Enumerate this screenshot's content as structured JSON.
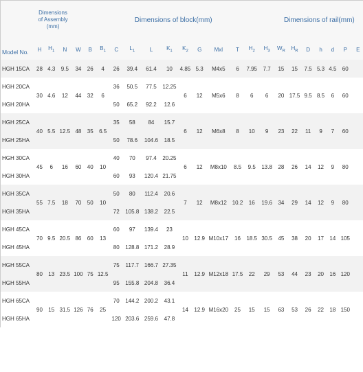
{
  "header": {
    "model_no": "Model No.",
    "group_assembly": "Dimensions of Assembly (mm)",
    "group_block": "Dimensions of block(mm)",
    "group_rail": "Dimensions of rail(mm)"
  },
  "columns": [
    "H",
    "H1",
    "N",
    "W",
    "B",
    "B1",
    "C",
    "L1",
    "L",
    "K1",
    "K2",
    "G",
    "Mxl",
    "T",
    "H2",
    "H3",
    "WR",
    "HR",
    "D",
    "h",
    "d",
    "P",
    "E"
  ],
  "column_html": [
    "H",
    "H<sub class='sub'>1</sub>",
    "N",
    "W",
    "B",
    "B<sub class='sub'>1</sub>",
    "C",
    "L<sub class='sub'>1</sub>",
    "L",
    "K<sub class='sub'>1</sub>",
    "K<sub class='sub'>2</sub>",
    "G",
    "Mxl",
    "T",
    "H<sub class='sub'>2</sub>",
    "H<sub class='sub'>3</sub>",
    "W<sub class='sub'>R</sub>",
    "H<sub class='sub'>R</sub>",
    "D",
    "h",
    "d",
    "P",
    "E"
  ],
  "pairs": [
    {
      "models": [
        "HGH 15CA"
      ],
      "shared": {
        "H": "28",
        "H1": "4.3",
        "N": "9.5",
        "W": "34",
        "B": "26",
        "B1": "4",
        "K2": "4.85",
        "G": "5.3",
        "Mxl": "M4x5",
        "T": "6",
        "H2": "7.95",
        "H3": "7.7",
        "WR": "15",
        "HR": "15",
        "D": "7.5",
        "h": "5.3",
        "d": "4.5",
        "P": "60",
        "E": ""
      },
      "rows": [
        {
          "C": "26",
          "L1": "39.4",
          "L": "61.4",
          "K1": "10"
        }
      ]
    },
    {
      "models": [
        "HGH 20CA",
        "HGH 20HA"
      ],
      "shared": {
        "H": "30",
        "H1": "4.6",
        "N": "12",
        "W": "44",
        "B": "32",
        "B1": "6",
        "K2": "6",
        "G": "12",
        "Mxl": "M5x6",
        "T": "8",
        "H2": "6",
        "H3": "6",
        "WR": "20",
        "HR": "17.5",
        "D": "9.5",
        "h": "8.5",
        "d": "6",
        "P": "60",
        "E": ""
      },
      "rows": [
        {
          "C": "36",
          "L1": "50.5",
          "L": "77.5",
          "K1": "12.25"
        },
        {
          "C": "50",
          "L1": "65.2",
          "L": "92.2",
          "K1": "12.6"
        }
      ]
    },
    {
      "models": [
        "HGH 25CA",
        "HGH 25HA"
      ],
      "shared": {
        "H": "40",
        "H1": "5.5",
        "N": "12.5",
        "W": "48",
        "B": "35",
        "B1": "6.5",
        "K2": "6",
        "G": "12",
        "Mxl": "M6x8",
        "T": "8",
        "H2": "10",
        "H3": "9",
        "WR": "23",
        "HR": "22",
        "D": "11",
        "h": "9",
        "d": "7",
        "P": "60",
        "E": ""
      },
      "rows": [
        {
          "C": "35",
          "L1": "58",
          "L": "84",
          "K1": "15.7"
        },
        {
          "C": "50",
          "L1": "78.6",
          "L": "104.6",
          "K1": "18.5"
        }
      ]
    },
    {
      "models": [
        "HGH 30CA",
        "HGH 30HA"
      ],
      "shared": {
        "H": "45",
        "H1": "6",
        "N": "16",
        "W": "60",
        "B": "40",
        "B1": "10",
        "K2": "6",
        "G": "12",
        "Mxl": "M8x10",
        "T": "8.5",
        "H2": "9.5",
        "H3": "13.8",
        "WR": "28",
        "HR": "26",
        "D": "14",
        "h": "12",
        "d": "9",
        "P": "80",
        "E": ""
      },
      "rows": [
        {
          "C": "40",
          "L1": "70",
          "L": "97.4",
          "K1": "20.25"
        },
        {
          "C": "60",
          "L1": "93",
          "L": "120.4",
          "K1": "21.75"
        }
      ]
    },
    {
      "models": [
        "HGH 35CA",
        "HGH 35HA"
      ],
      "shared": {
        "H": "55",
        "H1": "7.5",
        "N": "18",
        "W": "70",
        "B": "50",
        "B1": "10",
        "K2": "7",
        "G": "12",
        "Mxl": "M8x12",
        "T": "10.2",
        "H2": "16",
        "H3": "19.6",
        "WR": "34",
        "HR": "29",
        "D": "14",
        "h": "12",
        "d": "9",
        "P": "80",
        "E": ""
      },
      "rows": [
        {
          "C": "50",
          "L1": "80",
          "L": "112.4",
          "K1": "20.6"
        },
        {
          "C": "72",
          "L1": "105.8",
          "L": "138.2",
          "K1": "22.5"
        }
      ]
    },
    {
      "models": [
        "HGH 45CA",
        "HGH 45HA"
      ],
      "shared": {
        "H": "70",
        "H1": "9.5",
        "N": "20.5",
        "W": "86",
        "B": "60",
        "B1": "13",
        "K2": "10",
        "G": "12.9",
        "Mxl": "M10x17",
        "T": "16",
        "H2": "18.5",
        "H3": "30.5",
        "WR": "45",
        "HR": "38",
        "D": "20",
        "h": "17",
        "d": "14",
        "P": "105",
        "E": ""
      },
      "rows": [
        {
          "C": "60",
          "L1": "97",
          "L": "139.4",
          "K1": "23"
        },
        {
          "C": "80",
          "L1": "128.8",
          "L": "171.2",
          "K1": "28.9"
        }
      ]
    },
    {
      "models": [
        "HGH 55CA",
        "HGH 55HA"
      ],
      "shared": {
        "H": "80",
        "H1": "13",
        "N": "23.5",
        "W": "100",
        "B": "75",
        "B1": "12.5",
        "K2": "11",
        "G": "12.9",
        "Mxl": "M12x18",
        "T": "17.5",
        "H2": "22",
        "H3": "29",
        "WR": "53",
        "HR": "44",
        "D": "23",
        "h": "20",
        "d": "16",
        "P": "120",
        "E": ""
      },
      "rows": [
        {
          "C": "75",
          "L1": "117.7",
          "L": "166.7",
          "K1": "27.35"
        },
        {
          "C": "95",
          "L1": "155.8",
          "L": "204.8",
          "K1": "36.4"
        }
      ]
    },
    {
      "models": [
        "HGH 65CA",
        "HGH 65HA"
      ],
      "shared": {
        "H": "90",
        "H1": "15",
        "N": "31.5",
        "W": "126",
        "B": "76",
        "B1": "25",
        "K2": "14",
        "G": "12.9",
        "Mxl": "M16x20",
        "T": "25",
        "H2": "15",
        "H3": "15",
        "WR": "63",
        "HR": "53",
        "D": "26",
        "h": "22",
        "d": "18",
        "P": "150",
        "E": ""
      },
      "rows": [
        {
          "C": "70",
          "L1": "144.2",
          "L": "200.2",
          "K1": "43.1"
        },
        {
          "C": "120",
          "L1": "203.6",
          "L": "259.6",
          "K1": "47.8"
        }
      ]
    }
  ],
  "layout": {
    "assembly_cols": 3,
    "block_cols": 13,
    "rail_cols": 7,
    "stripe_colors": [
      "#f2f2f2",
      "#ffffff"
    ],
    "header_color": "#3b6ea5"
  }
}
